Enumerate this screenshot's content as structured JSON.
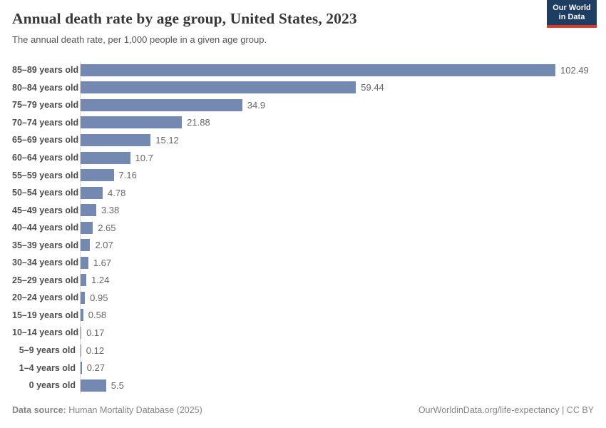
{
  "header": {
    "title": "Annual death rate by age group, United States, 2023",
    "subtitle": "The annual death rate, per 1,000 people in a given age group.",
    "logo": {
      "line1": "Our World",
      "line2": "in Data"
    }
  },
  "chart_data": {
    "type": "bar",
    "orientation": "horizontal",
    "title": "Annual death rate by age group, United States, 2023",
    "xlabel": "",
    "ylabel": "",
    "xlim": [
      0,
      105
    ],
    "grid": false,
    "legend": "none",
    "bar_color": "#7389b1",
    "categories": [
      "85–89 years old",
      "80–84 years old",
      "75–79 years old",
      "70–74 years old",
      "65–69 years old",
      "60–64 years old",
      "55–59 years old",
      "50–54 years old",
      "45–49 years old",
      "40–44 years old",
      "35–39 years old",
      "30–34 years old",
      "25–29 years old",
      "20–24 years old",
      "15–19 years old",
      "10–14 years old",
      "5–9 years old",
      "1–4 years old",
      "0 years old"
    ],
    "values": [
      102.49,
      59.44,
      34.9,
      21.88,
      15.12,
      10.7,
      7.16,
      4.78,
      3.38,
      2.65,
      2.07,
      1.67,
      1.24,
      0.95,
      0.58,
      0.17,
      0.12,
      0.27,
      5.5
    ],
    "value_labels": [
      "102.49",
      "59.44",
      "34.9",
      "21.88",
      "15.12",
      "10.7",
      "7.16",
      "4.78",
      "3.38",
      "2.65",
      "2.07",
      "1.67",
      "1.24",
      "0.95",
      "0.58",
      "0.17",
      "0.12",
      "0.27",
      "5.5"
    ]
  },
  "footer": {
    "source_label": "Data source:",
    "source_text": " Human Mortality Database (2025)",
    "link": "OurWorldinData.org/life-expectancy",
    "license": " | CC BY"
  },
  "colors": {
    "bar": "#7389b1",
    "logo_bg": "#1d3d63",
    "logo_accent": "#d93a2b",
    "axis_line": "#dadada",
    "title_text": "#383838",
    "label_text": "#4e4e4e",
    "value_text": "#666666",
    "footer_text": "#858585"
  }
}
